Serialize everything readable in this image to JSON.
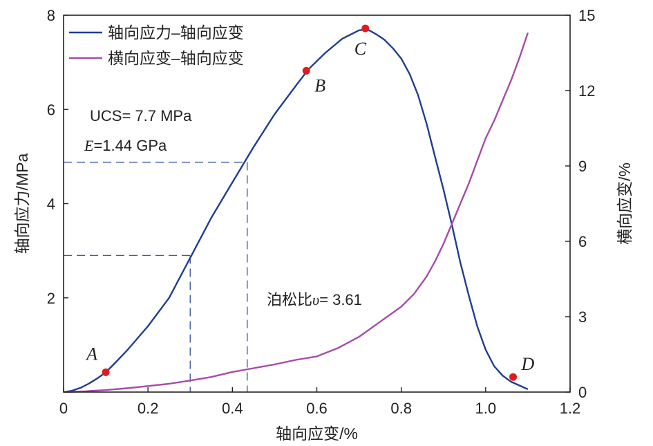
{
  "chart_data": {
    "type": "line",
    "xlabel": "轴向应变/%",
    "ylabel": "轴向应力/MPa",
    "y2label": "横向应变/%",
    "xlim": [
      0,
      1.2
    ],
    "ylim": [
      0,
      8
    ],
    "y2lim": [
      0,
      15
    ],
    "xticks": [
      0,
      0.2,
      0.4,
      0.6,
      0.8,
      1.0,
      1.2
    ],
    "xtick_labels": [
      "0",
      "0.2",
      "0.4",
      "0.6",
      "0.8",
      "1.0",
      "1.2"
    ],
    "yticks": [
      2,
      4,
      6,
      8
    ],
    "ytick_labels": [
      "2",
      "4",
      "6",
      "8"
    ],
    "y2ticks": [
      0,
      3,
      6,
      9,
      12,
      15
    ],
    "y2tick_labels": [
      "0",
      "3",
      "6",
      "9",
      "12",
      "15"
    ],
    "legend": {
      "placement": "top-left"
    },
    "series": [
      {
        "name": "轴向应力–轴向应变",
        "axis": "left",
        "color": "#1f3d91",
        "x": [
          0,
          0.02,
          0.04,
          0.06,
          0.08,
          0.1,
          0.12,
          0.15,
          0.2,
          0.25,
          0.3,
          0.35,
          0.4,
          0.45,
          0.5,
          0.55,
          0.58,
          0.62,
          0.66,
          0.7,
          0.72,
          0.74,
          0.76,
          0.78,
          0.8,
          0.82,
          0.84,
          0.86,
          0.88,
          0.9,
          0.92,
          0.94,
          0.96,
          0.98,
          1.0,
          1.02,
          1.04,
          1.06,
          1.08,
          1.1
        ],
        "y": [
          0,
          0.03,
          0.09,
          0.18,
          0.29,
          0.42,
          0.6,
          0.88,
          1.4,
          2.0,
          2.85,
          3.7,
          4.45,
          5.2,
          5.9,
          6.5,
          6.85,
          7.2,
          7.5,
          7.68,
          7.7,
          7.6,
          7.48,
          7.3,
          7.08,
          6.75,
          6.3,
          5.7,
          5.0,
          4.3,
          3.55,
          2.75,
          2.05,
          1.4,
          0.9,
          0.55,
          0.35,
          0.22,
          0.14,
          0.06
        ]
      },
      {
        "name": "横向应变–轴向应变",
        "axis": "right",
        "color": "#a64ca6",
        "x": [
          0,
          0.05,
          0.1,
          0.15,
          0.2,
          0.25,
          0.3,
          0.35,
          0.4,
          0.45,
          0.5,
          0.55,
          0.6,
          0.65,
          0.7,
          0.75,
          0.8,
          0.83,
          0.86,
          0.88,
          0.9,
          0.92,
          0.94,
          0.96,
          0.98,
          1.0,
          1.02,
          1.04,
          1.06,
          1.08,
          1.1
        ],
        "y": [
          0,
          0.03,
          0.08,
          0.15,
          0.24,
          0.33,
          0.46,
          0.6,
          0.8,
          0.95,
          1.1,
          1.28,
          1.42,
          1.75,
          2.2,
          2.8,
          3.4,
          3.9,
          4.6,
          5.2,
          5.9,
          6.7,
          7.5,
          8.3,
          9.2,
          10.1,
          10.8,
          11.6,
          12.4,
          13.3,
          14.3
        ]
      }
    ],
    "points": [
      {
        "label": "A",
        "x": 0.1,
        "y": 0.42
      },
      {
        "label": "B",
        "x": 0.575,
        "y": 6.82
      },
      {
        "label": "C",
        "x": 0.715,
        "y": 7.72
      },
      {
        "label": "D",
        "x": 1.065,
        "y": 0.32
      }
    ],
    "guides": [
      {
        "x": 0.3,
        "y": 2.9
      },
      {
        "x": 0.435,
        "y": 4.88
      }
    ],
    "annotations": {
      "ucs": "UCS= 7.7 MPa",
      "modulus_symbol": "E",
      "modulus_value": "=1.44 GPa",
      "poisson_prefix": "泊松比",
      "poisson_symbol": "υ",
      "poisson_value": "= 3.61"
    },
    "colors": {
      "points": "#e31a1c",
      "guide": "#3a5ba8"
    }
  }
}
